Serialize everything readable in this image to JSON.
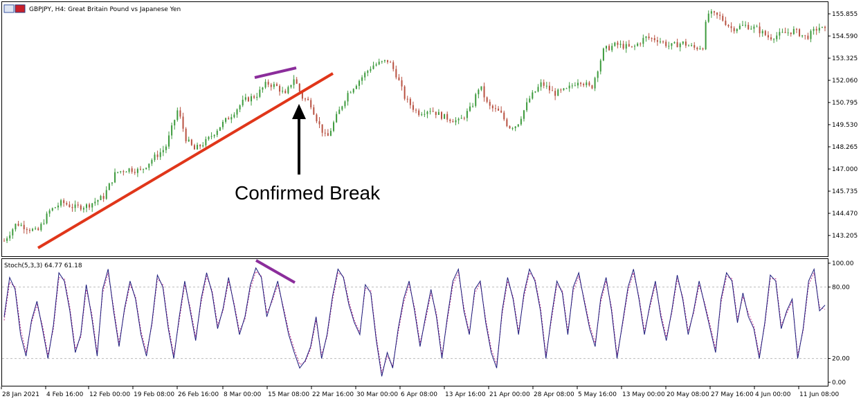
{
  "chart": {
    "symbol_line": "GBPJPY, H4:  Great Britain Pound vs Japanese Yen",
    "annotation": "Confirmed Break",
    "indicator_line": "Stoch(5,3,3) 64.77 61.18",
    "colors": {
      "candles": "#3c9a3c",
      "candles_down": "#b85040",
      "trendline": "#e0361a",
      "divergence": "#8b2d9b",
      "stoch_main": "#1a1a7a",
      "stoch_signal": "#c0308a",
      "arrow": "#000000"
    }
  },
  "chart_data": [
    {
      "type": "candlestick",
      "title": "GBPJPY, H4:  Great Britain Pound vs Japanese Yen",
      "y_ticks": [
        "155.855",
        "154.590",
        "153.325",
        "152.060",
        "150.795",
        "149.530",
        "148.265",
        "147.000",
        "145.735",
        "144.470",
        "143.205"
      ],
      "ylim": [
        142.4,
        156.2
      ],
      "x_ticks": [
        "28 Jan 2021",
        "4 Feb 16:00",
        "12 Feb 00:00",
        "19 Feb 08:00",
        "26 Feb 16:00",
        "8 Mar 00:00",
        "15 Mar 08:00",
        "22 Mar 16:00",
        "30 Mar 00:00",
        "6 Apr 08:00",
        "13 Apr 16:00",
        "21 Apr 00:00",
        "28 Apr 08:00",
        "5 May 16:00",
        "13 May 00:00",
        "20 May 08:00",
        "27 May 16:00",
        "4 Jun 00:00",
        "11 Jun 08:00"
      ],
      "price_path": [
        [
          0,
          142.9
        ],
        [
          0.3,
          143.9
        ],
        [
          0.8,
          143.4
        ],
        [
          1.1,
          144.6
        ],
        [
          1.4,
          145.1
        ],
        [
          1.7,
          144.8
        ],
        [
          2.0,
          144.9
        ],
        [
          2.4,
          145.4
        ],
        [
          2.7,
          146.8
        ],
        [
          3.0,
          147.0
        ],
        [
          3.3,
          146.9
        ],
        [
          3.6,
          147.6
        ],
        [
          3.9,
          148.2
        ],
        [
          4.2,
          150.4
        ],
        [
          4.4,
          148.7
        ],
        [
          4.6,
          148.1
        ],
        [
          4.9,
          148.6
        ],
        [
          5.2,
          149.4
        ],
        [
          5.5,
          150.1
        ],
        [
          5.8,
          150.9
        ],
        [
          6.1,
          151.2
        ],
        [
          6.35,
          151.9
        ],
        [
          6.6,
          151.7
        ],
        [
          6.8,
          151.2
        ],
        [
          7.0,
          152.2
        ],
        [
          7.1,
          151.7
        ],
        [
          7.2,
          151.1
        ],
        [
          7.4,
          150.8
        ],
        [
          7.6,
          149.6
        ],
        [
          7.8,
          148.7
        ],
        [
          8.0,
          149.8
        ],
        [
          8.3,
          151.3
        ],
        [
          8.6,
          152.1
        ],
        [
          8.9,
          152.9
        ],
        [
          9.3,
          153.2
        ],
        [
          9.5,
          152.3
        ],
        [
          9.7,
          151.0
        ],
        [
          10.0,
          150.2
        ],
        [
          10.3,
          150.4
        ],
        [
          10.6,
          150.0
        ],
        [
          11.0,
          149.7
        ],
        [
          11.3,
          150.5
        ],
        [
          11.5,
          151.8
        ],
        [
          11.7,
          150.6
        ],
        [
          12.0,
          150.2
        ],
        [
          12.2,
          149.4
        ],
        [
          12.4,
          149.5
        ],
        [
          12.7,
          151.0
        ],
        [
          13.0,
          151.9
        ],
        [
          13.3,
          151.3
        ],
        [
          13.6,
          151.5
        ],
        [
          13.9,
          152.1
        ],
        [
          14.2,
          151.6
        ],
        [
          14.5,
          153.8
        ],
        [
          14.8,
          154.1
        ],
        [
          15.2,
          153.9
        ],
        [
          15.5,
          154.5
        ],
        [
          15.8,
          154.4
        ],
        [
          16.1,
          154.0
        ],
        [
          16.4,
          154.2
        ],
        [
          16.7,
          153.9
        ],
        [
          16.9,
          154.0
        ],
        [
          17.0,
          155.9
        ],
        [
          17.3,
          155.7
        ],
        [
          17.6,
          155.0
        ],
        [
          17.9,
          155.2
        ],
        [
          18.2,
          155.0
        ],
        [
          18.5,
          154.5
        ],
        [
          18.8,
          154.7
        ],
        [
          19.1,
          154.9
        ],
        [
          19.4,
          154.5
        ],
        [
          19.7,
          155.1
        ],
        [
          19.85,
          154.9
        ]
      ]
    },
    {
      "type": "line",
      "title": "Stoch(5,3,3) 64.77 61.18",
      "y_ticks": [
        "100.00",
        "80.00",
        "20.00",
        "0.00"
      ],
      "levels": [
        80,
        20
      ],
      "ylim": [
        0,
        100
      ],
      "x_ticks": [
        "28 Jan 2021",
        "4 Feb 16:00",
        "12 Feb 00:00",
        "19 Feb 08:00",
        "26 Feb 16:00",
        "8 Mar 00:00",
        "15 Mar 08:00",
        "22 Mar 16:00",
        "30 Mar 00:00",
        "6 Apr 08:00",
        "13 Apr 16:00",
        "21 Apr 00:00",
        "28 Apr 08:00",
        "5 May 16:00",
        "13 May 00:00",
        "20 May 08:00",
        "27 May 16:00",
        "4 Jun 00:00",
        "11 Jun 08:00"
      ],
      "series": [
        {
          "values": [
            55,
            88,
            78,
            40,
            22,
            52,
            68,
            45,
            20,
            48,
            92,
            85,
            60,
            25,
            40,
            82,
            55,
            22,
            78,
            95,
            60,
            30,
            62,
            85,
            70,
            40,
            22,
            50,
            90,
            80,
            45,
            20,
            55,
            85,
            60,
            35,
            70,
            92,
            75,
            45,
            62,
            88,
            65,
            40,
            55,
            82,
            96,
            88,
            55,
            70,
            85,
            62,
            40,
            25,
            12,
            18,
            30,
            55,
            20,
            40,
            72,
            95,
            88,
            65,
            50,
            40,
            82,
            75,
            35,
            5,
            25,
            12,
            45,
            70,
            85,
            60,
            30,
            55,
            78,
            55,
            20,
            55,
            85,
            95,
            60,
            40,
            78,
            85,
            50,
            25,
            12,
            60,
            88,
            70,
            40,
            75,
            95,
            85,
            60,
            20,
            55,
            85,
            75,
            40,
            80,
            92,
            68,
            45,
            30,
            70,
            88,
            60,
            20,
            50,
            80,
            95,
            70,
            40,
            65,
            85,
            55,
            35,
            60,
            90,
            70,
            40,
            60,
            85,
            65,
            45,
            25,
            70,
            92,
            85,
            50,
            75,
            55,
            45,
            20,
            50,
            90,
            85,
            45,
            60,
            70,
            20,
            45,
            85,
            95,
            60,
            64.77
          ]
        },
        {
          "values": [
            52,
            84,
            80,
            45,
            25,
            50,
            65,
            48,
            23,
            45,
            88,
            87,
            63,
            28,
            38,
            78,
            58,
            25,
            75,
            92,
            63,
            33,
            60,
            82,
            72,
            43,
            25,
            48,
            87,
            82,
            48,
            23,
            52,
            82,
            63,
            38,
            67,
            89,
            77,
            48,
            60,
            85,
            67,
            43,
            53,
            79,
            93,
            89,
            58,
            68,
            82,
            64,
            43,
            28,
            15,
            17,
            28,
            52,
            23,
            38,
            69,
            92,
            89,
            68,
            52,
            42,
            79,
            77,
            38,
            8,
            22,
            14,
            42,
            67,
            82,
            63,
            33,
            52,
            75,
            58,
            23,
            52,
            82,
            92,
            63,
            42,
            75,
            83,
            53,
            28,
            15,
            57,
            85,
            72,
            43,
            72,
            92,
            87,
            63,
            23,
            52,
            82,
            77,
            43,
            77,
            89,
            70,
            48,
            33,
            67,
            85,
            63,
            23,
            48,
            77,
            92,
            72,
            43,
            63,
            82,
            58,
            38,
            58,
            87,
            72,
            43,
            58,
            82,
            67,
            48,
            28,
            67,
            89,
            87,
            53,
            72,
            58,
            47,
            23,
            48,
            87,
            87,
            48,
            58,
            68,
            23,
            43,
            82,
            92,
            63,
            61.18
          ]
        }
      ]
    }
  ]
}
